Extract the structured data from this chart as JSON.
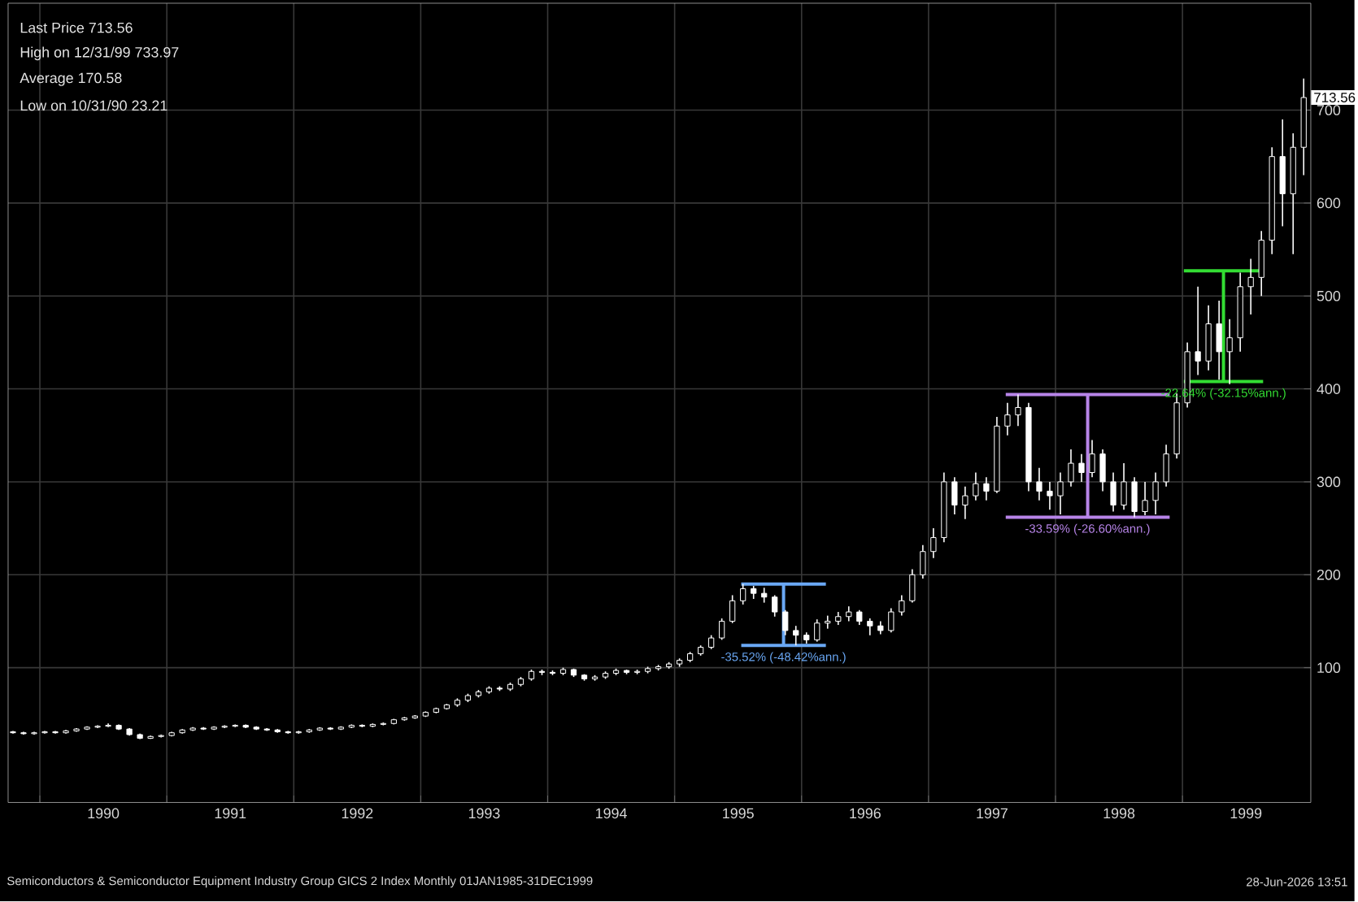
{
  "chart_data": {
    "type": "candlestick",
    "color": "#ffffff",
    "x": [
      "1989-10-15",
      "1989-11-15",
      "1989-12-15",
      "1990-01-15",
      "1990-02-15",
      "1990-03-15",
      "1990-04-15",
      "1990-05-15",
      "1990-06-15",
      "1990-07-15",
      "1990-08-15",
      "1990-09-15",
      "1990-10-15",
      "1990-11-15",
      "1990-12-15",
      "1991-01-15",
      "1991-02-15",
      "1991-03-15",
      "1991-04-15",
      "1991-05-15",
      "1991-06-15",
      "1991-07-15",
      "1991-08-15",
      "1991-09-15",
      "1991-10-15",
      "1991-11-15",
      "1991-12-15",
      "1992-01-15",
      "1992-02-15",
      "1992-03-15",
      "1992-04-15",
      "1992-05-15",
      "1992-06-15",
      "1992-07-15",
      "1992-08-15",
      "1992-09-15",
      "1992-10-15",
      "1992-11-15",
      "1992-12-15",
      "1993-01-15",
      "1993-02-15",
      "1993-03-15",
      "1993-04-15",
      "1993-05-15",
      "1993-06-15",
      "1993-07-15",
      "1993-08-15",
      "1993-09-15",
      "1993-10-15",
      "1993-11-15",
      "1993-12-15",
      "1994-01-15",
      "1994-02-15",
      "1994-03-15",
      "1994-04-15",
      "1994-05-15",
      "1994-06-15",
      "1994-07-15",
      "1994-08-15",
      "1994-09-15",
      "1994-10-15",
      "1994-11-15",
      "1994-12-15",
      "1995-01-15",
      "1995-02-15",
      "1995-03-15",
      "1995-04-15",
      "1995-05-15",
      "1995-06-15",
      "1995-07-15",
      "1995-08-15",
      "1995-09-15",
      "1995-10-15",
      "1995-11-15",
      "1995-12-15",
      "1996-01-15",
      "1996-02-15",
      "1996-03-15",
      "1996-04-15",
      "1996-05-15",
      "1996-06-15",
      "1996-07-15",
      "1996-08-15",
      "1996-09-15",
      "1996-10-15",
      "1996-11-15",
      "1996-12-15",
      "1997-01-15",
      "1997-02-15",
      "1997-03-15",
      "1997-04-15",
      "1997-05-15",
      "1997-06-15",
      "1997-07-15",
      "1997-08-15",
      "1997-09-15",
      "1997-10-15",
      "1997-11-15",
      "1997-12-15",
      "1998-01-15",
      "1998-02-15",
      "1998-03-15",
      "1998-04-15",
      "1998-05-15",
      "1998-06-15",
      "1998-07-15",
      "1998-08-15",
      "1998-09-15",
      "1998-10-15",
      "1998-11-15",
      "1998-12-15",
      "1999-01-15",
      "1999-02-15",
      "1999-03-15",
      "1999-04-15",
      "1999-05-15",
      "1999-06-15",
      "1999-07-15",
      "1999-08-15",
      "1999-09-15",
      "1999-10-15",
      "1999-11-15",
      "1999-12-15"
    ],
    "ohlc": [
      [
        31,
        32,
        29,
        30
      ],
      [
        30,
        31,
        28,
        29
      ],
      [
        29,
        31,
        28,
        30
      ],
      [
        30,
        32,
        29,
        31
      ],
      [
        31,
        32,
        29,
        30
      ],
      [
        30,
        33,
        29,
        32
      ],
      [
        32,
        35,
        31,
        34
      ],
      [
        34,
        37,
        33,
        36
      ],
      [
        36,
        38,
        35,
        37
      ],
      [
        37,
        40,
        36,
        38
      ],
      [
        38,
        39,
        33,
        34
      ],
      [
        34,
        35,
        27,
        28
      ],
      [
        28,
        29,
        23.21,
        24
      ],
      [
        24,
        27,
        23.5,
        26
      ],
      [
        26,
        28,
        25,
        27
      ],
      [
        27,
        31,
        26,
        30
      ],
      [
        30,
        34,
        29,
        33
      ],
      [
        33,
        36,
        32,
        35
      ],
      [
        35,
        36,
        33,
        34
      ],
      [
        34,
        37,
        33,
        36
      ],
      [
        36,
        38,
        35,
        37
      ],
      [
        37,
        39,
        36,
        38
      ],
      [
        38,
        39,
        35,
        36
      ],
      [
        36,
        37,
        33,
        34
      ],
      [
        34,
        35,
        32,
        33
      ],
      [
        33,
        34,
        30,
        31
      ],
      [
        31,
        32,
        29,
        30
      ],
      [
        30,
        32,
        29,
        31
      ],
      [
        31,
        34,
        30,
        33
      ],
      [
        33,
        36,
        32,
        35
      ],
      [
        35,
        36,
        33,
        34
      ],
      [
        34,
        37,
        33,
        36
      ],
      [
        36,
        39,
        35,
        38
      ],
      [
        38,
        39,
        36,
        37
      ],
      [
        37,
        40,
        36,
        39
      ],
      [
        39,
        41,
        38,
        40
      ],
      [
        40,
        45,
        39,
        44
      ],
      [
        44,
        47,
        43,
        46
      ],
      [
        46,
        49,
        45,
        48
      ],
      [
        48,
        53,
        47,
        52
      ],
      [
        52,
        57,
        51,
        56
      ],
      [
        56,
        61,
        55,
        60
      ],
      [
        60,
        67,
        58,
        65
      ],
      [
        65,
        72,
        63,
        70
      ],
      [
        70,
        76,
        68,
        74
      ],
      [
        74,
        80,
        72,
        78
      ],
      [
        78,
        80,
        75,
        77
      ],
      [
        77,
        84,
        75,
        82
      ],
      [
        82,
        90,
        80,
        88
      ],
      [
        88,
        98,
        86,
        96
      ],
      [
        96,
        98,
        92,
        95
      ],
      [
        95,
        97,
        92,
        94
      ],
      [
        94,
        100,
        92,
        98
      ],
      [
        98,
        99,
        90,
        92
      ],
      [
        92,
        93,
        86,
        88
      ],
      [
        88,
        92,
        86,
        90
      ],
      [
        90,
        96,
        88,
        94
      ],
      [
        94,
        99,
        92,
        97
      ],
      [
        97,
        98,
        93,
        95
      ],
      [
        95,
        98,
        93,
        96
      ],
      [
        96,
        101,
        94,
        99
      ],
      [
        99,
        103,
        97,
        101
      ],
      [
        101,
        106,
        99,
        104
      ],
      [
        104,
        110,
        101,
        108
      ],
      [
        108,
        117,
        106,
        115
      ],
      [
        115,
        124,
        113,
        122
      ],
      [
        122,
        135,
        120,
        132
      ],
      [
        132,
        153,
        130,
        150
      ],
      [
        150,
        178,
        148,
        172
      ],
      [
        172,
        190,
        168,
        185
      ],
      [
        185,
        188,
        174,
        180
      ],
      [
        180,
        186,
        170,
        176
      ],
      [
        176,
        178,
        155,
        160
      ],
      [
        160,
        162,
        135,
        140
      ],
      [
        140,
        145,
        124,
        135
      ],
      [
        135,
        138,
        126,
        130
      ],
      [
        130,
        152,
        128,
        148
      ],
      [
        148,
        156,
        142,
        150
      ],
      [
        150,
        160,
        146,
        155
      ],
      [
        155,
        166,
        150,
        160
      ],
      [
        160,
        162,
        146,
        150
      ],
      [
        150,
        153,
        135,
        145
      ],
      [
        145,
        150,
        136,
        140
      ],
      [
        140,
        164,
        138,
        160
      ],
      [
        160,
        178,
        156,
        172
      ],
      [
        172,
        206,
        170,
        200
      ],
      [
        200,
        232,
        196,
        225
      ],
      [
        225,
        250,
        218,
        240
      ],
      [
        240,
        310,
        235,
        300
      ],
      [
        300,
        305,
        265,
        275
      ],
      [
        275,
        295,
        260,
        285
      ],
      [
        285,
        310,
        280,
        298
      ],
      [
        298,
        305,
        280,
        290
      ],
      [
        290,
        370,
        288,
        360
      ],
      [
        360,
        385,
        350,
        372
      ],
      [
        372,
        394,
        360,
        380
      ],
      [
        380,
        385,
        290,
        300
      ],
      [
        300,
        315,
        280,
        290
      ],
      [
        290,
        300,
        270,
        285
      ],
      [
        285,
        310,
        265,
        300
      ],
      [
        300,
        335,
        295,
        320
      ],
      [
        320,
        330,
        300,
        310
      ],
      [
        310,
        345,
        305,
        330
      ],
      [
        330,
        335,
        290,
        300
      ],
      [
        300,
        310,
        268,
        275
      ],
      [
        275,
        320,
        270,
        300
      ],
      [
        300,
        305,
        262,
        268
      ],
      [
        268,
        300,
        264,
        280
      ],
      [
        280,
        310,
        265,
        300
      ],
      [
        300,
        340,
        295,
        330
      ],
      [
        330,
        395,
        325,
        385
      ],
      [
        385,
        450,
        380,
        440
      ],
      [
        440,
        510,
        415,
        430
      ],
      [
        430,
        490,
        420,
        470
      ],
      [
        470,
        495,
        410,
        440
      ],
      [
        440,
        475,
        405,
        455
      ],
      [
        455,
        525,
        440,
        510
      ],
      [
        510,
        540,
        480,
        520
      ],
      [
        520,
        570,
        500,
        560
      ],
      [
        560,
        660,
        545,
        650
      ],
      [
        650,
        690,
        575,
        610
      ],
      [
        610,
        675,
        545,
        660
      ],
      [
        660,
        733.97,
        630,
        713.56
      ]
    ],
    "series": [
      {
        "type": "line",
        "color": "#6aa8f5",
        "x": [
          "1995-07-10",
          "1996-03-10"
        ],
        "values": [
          190,
          190
        ]
      },
      {
        "type": "line",
        "color": "#6aa8f5",
        "x": [
          "1995-07-10",
          "1996-03-10"
        ],
        "values": [
          124,
          124
        ]
      },
      {
        "type": "line",
        "color": "#b784e8",
        "x": [
          "1997-08-10",
          "1998-11-25"
        ],
        "values": [
          394,
          394
        ]
      },
      {
        "type": "line",
        "color": "#b784e8",
        "x": [
          "1997-08-10",
          "1998-11-25"
        ],
        "values": [
          262,
          262
        ]
      },
      {
        "type": "line",
        "color": "#33dd33",
        "x": [
          "1999-01-05",
          "1999-08-20"
        ],
        "values": [
          527,
          527
        ]
      },
      {
        "type": "line",
        "color": "#33dd33",
        "x": [
          "1999-01-05",
          "1999-08-20"
        ],
        "values": [
          408,
          408
        ]
      }
    ],
    "xlim": [
      "1989-10-01",
      "2000-01-05"
    ],
    "xticks": [
      {
        "value": "1990-01-01",
        "label": null
      },
      {
        "value": "1990-07-01",
        "label": "1990"
      },
      {
        "value": "1991-01-01",
        "label": null
      },
      {
        "value": "1991-07-01",
        "label": "1991"
      },
      {
        "value": "1992-01-01",
        "label": null
      },
      {
        "value": "1992-07-01",
        "label": "1992"
      },
      {
        "value": "1993-01-01",
        "label": null
      },
      {
        "value": "1993-07-01",
        "label": "1993"
      },
      {
        "value": "1994-01-01",
        "label": null
      },
      {
        "value": "1994-07-01",
        "label": "1994"
      },
      {
        "value": "1995-01-01",
        "label": null
      },
      {
        "value": "1995-07-01",
        "label": "1995"
      },
      {
        "value": "1996-01-01",
        "label": null
      },
      {
        "value": "1996-07-01",
        "label": "1996"
      },
      {
        "value": "1997-01-01",
        "label": null
      },
      {
        "value": "1997-07-01",
        "label": "1997"
      },
      {
        "value": "1998-01-01",
        "label": null
      },
      {
        "value": "1998-07-01",
        "label": "1998"
      },
      {
        "value": "1999-01-01",
        "label": null
      },
      {
        "value": "1999-07-01",
        "label": "1999"
      }
    ],
    "ylim": [
      -45,
      815
    ],
    "yticks": [
      100,
      200,
      300,
      400,
      500,
      600,
      700
    ],
    "grid": true,
    "annotations": [
      "Last Price 713.56",
      "High on 12/31/99 733.97",
      "Average 170.58",
      "Low on 10/31/90 23.21",
      "Semiconductors & Semiconductor Equipment Industry Group GICS 2 Index Monthly 01JAN1985-31DEC1999",
      "28-Jun-2026 13:51",
      "713.56",
      {
        "text": "-35.52% (-48.42%ann.)",
        "x": "1995-11-10",
        "y": 124
      },
      {
        "text": "-33.59% (-26.60%ann.)",
        "x": "1998-04-02",
        "y": 262
      },
      {
        "text": "-22.64% (-32.15%ann.)",
        "x": "1999-04-28",
        "y": 408
      }
    ]
  }
}
